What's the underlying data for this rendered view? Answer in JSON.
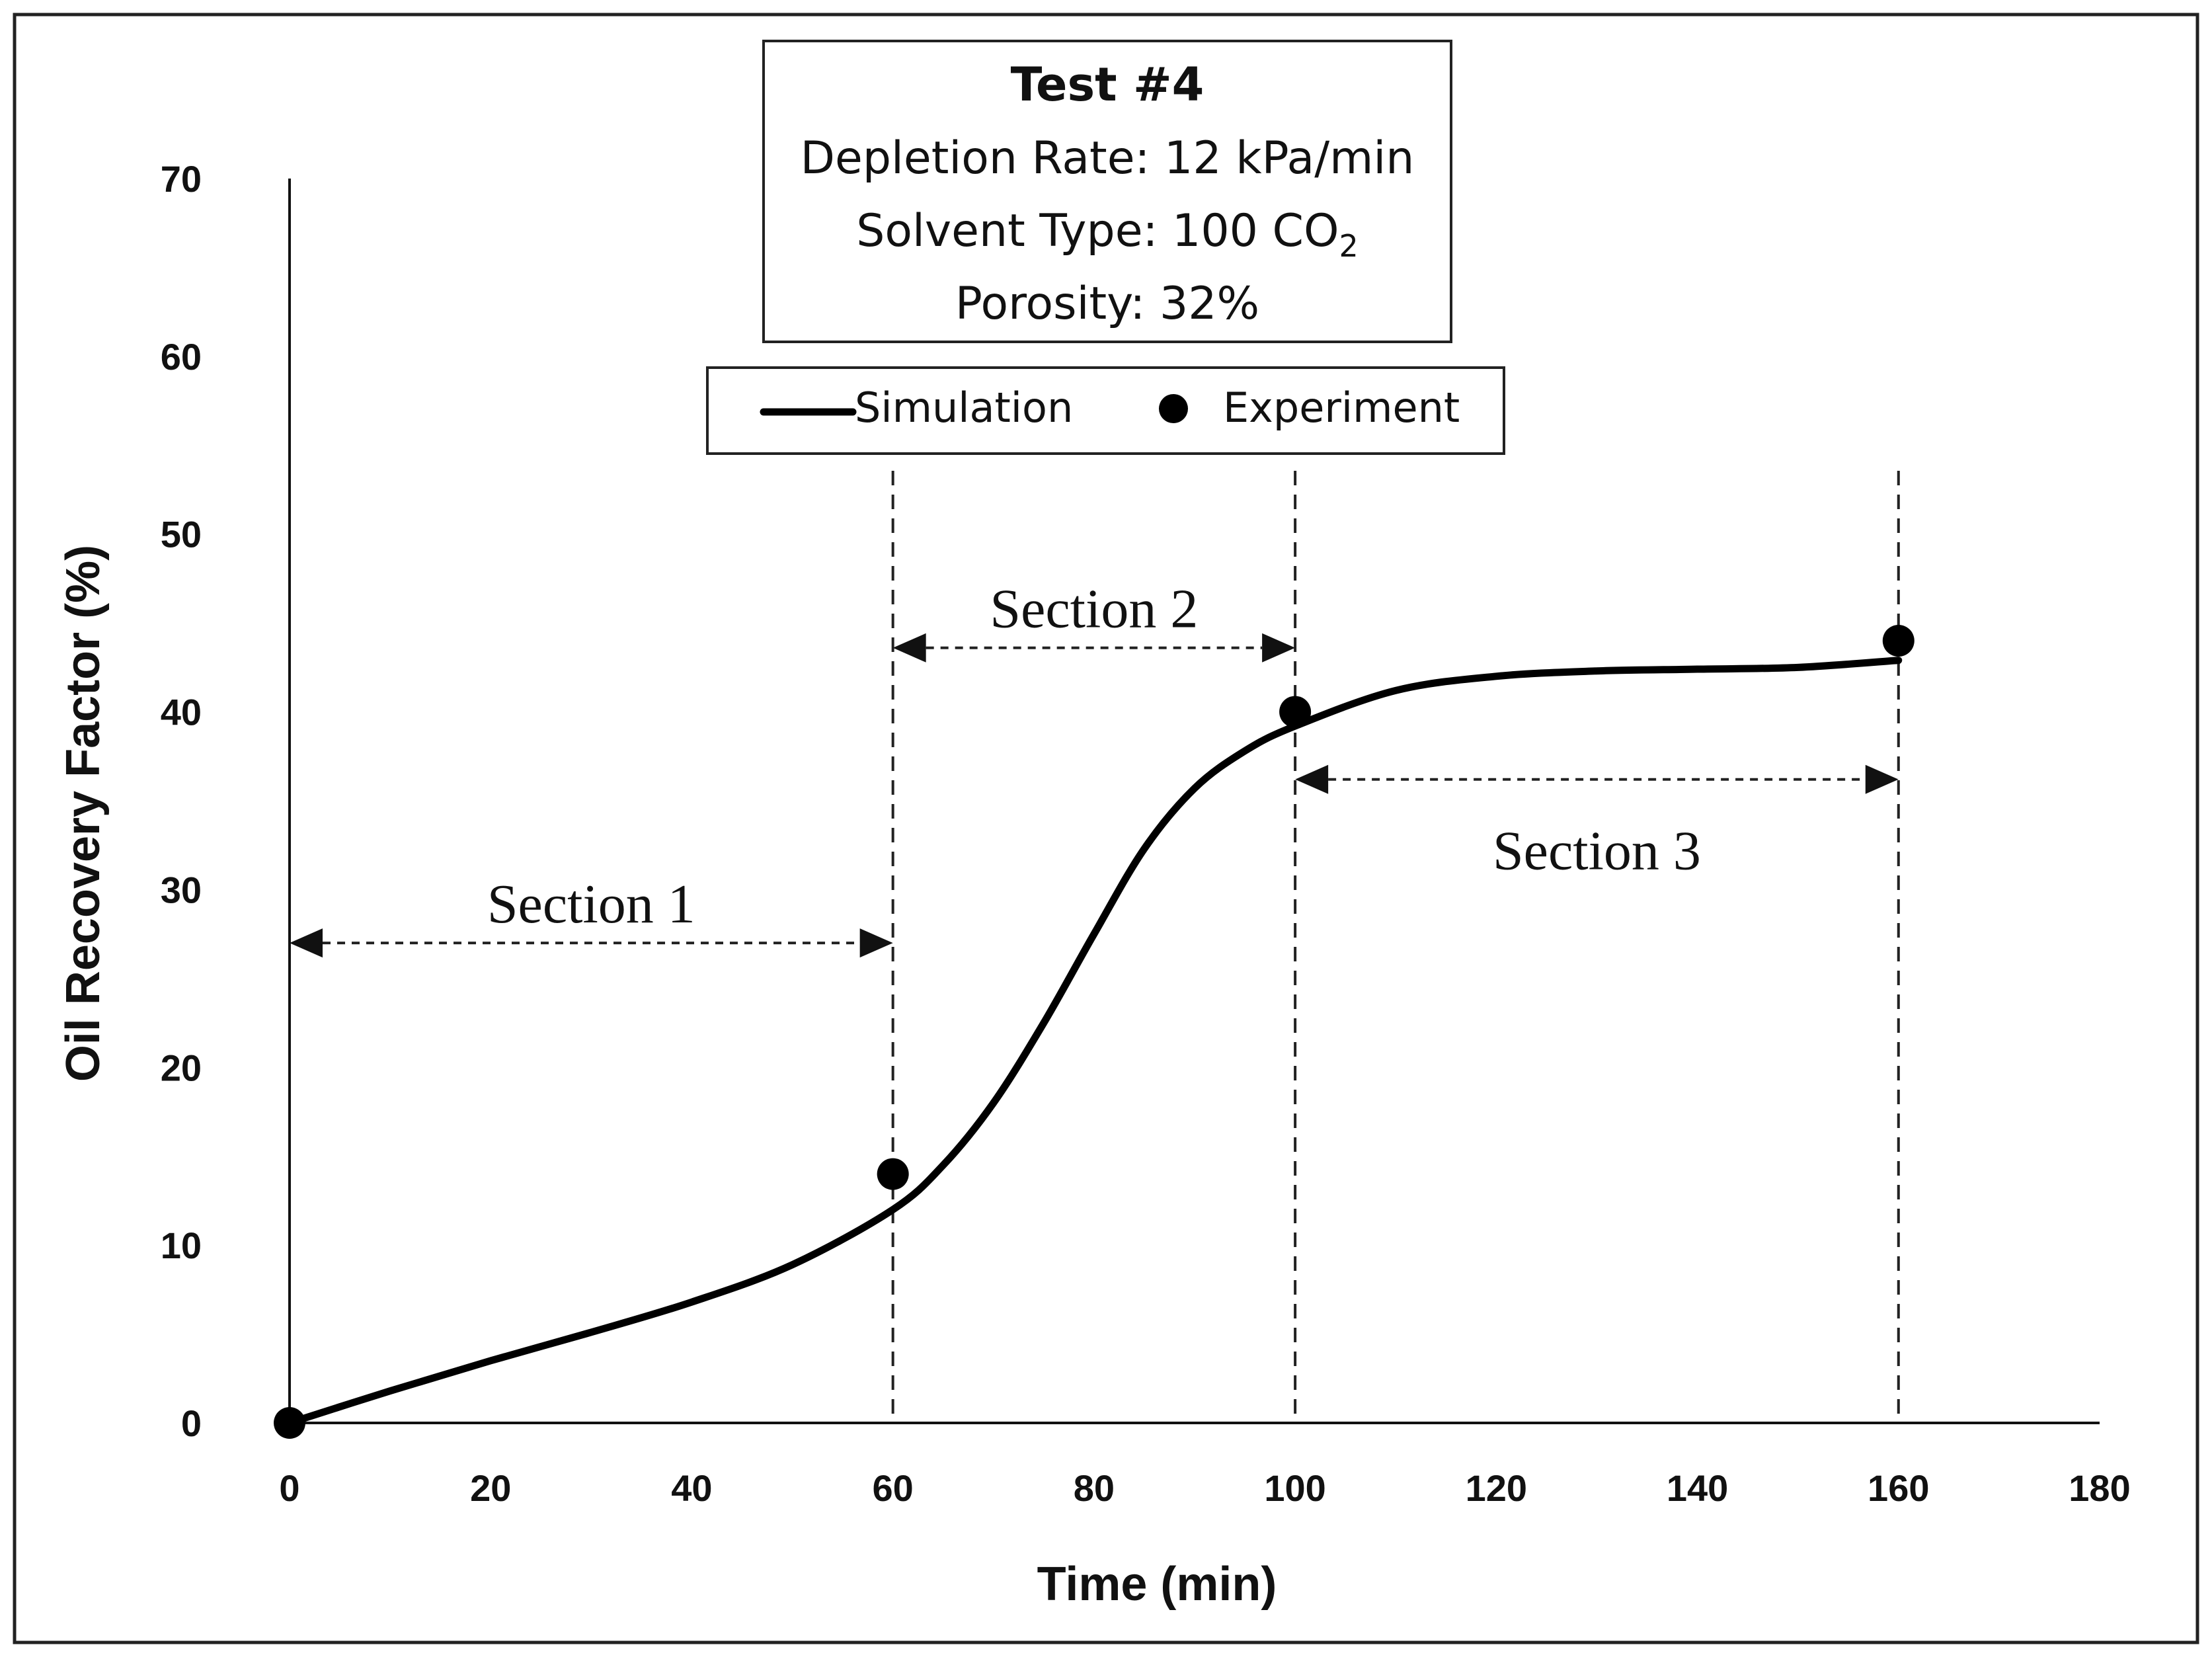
{
  "chart_data": {
    "type": "line",
    "xlabel": "Time (min)",
    "ylabel": "Oil Recovery Factor (%)",
    "xlim": [
      0,
      180
    ],
    "ylim": [
      0,
      70
    ],
    "x_ticks": [
      0,
      20,
      40,
      60,
      80,
      100,
      120,
      140,
      160,
      180
    ],
    "y_ticks": [
      0,
      10,
      20,
      30,
      40,
      50,
      60,
      70
    ],
    "info_box": {
      "title": "Test #4",
      "depletion_rate": "Depletion Rate: 12 kPa/min",
      "solvent_prefix": "Solvent Type: 100 CO",
      "solvent_subscript": "2",
      "porosity": "Porosity: 32%"
    },
    "legend": {
      "simulation": "Simulation",
      "experiment": "Experiment"
    },
    "series": [
      {
        "name": "Simulation",
        "style": "line",
        "x": [
          0,
          10,
          20,
          30,
          40,
          50,
          60,
          65,
          70,
          75,
          80,
          85,
          90,
          95,
          100,
          110,
          120,
          130,
          140,
          150,
          160
        ],
        "y": [
          0,
          1.8,
          3.5,
          5.1,
          6.8,
          8.9,
          12,
          14.5,
          18,
          22.5,
          27.5,
          32.3,
          35.7,
          37.8,
          39.2,
          41.2,
          42,
          42.3,
          42.4,
          42.5,
          42.9
        ]
      },
      {
        "name": "Experiment",
        "style": "marker",
        "x": [
          0,
          60,
          100,
          160
        ],
        "y": [
          0,
          14,
          40,
          44
        ]
      }
    ],
    "section_boundaries": [
      60,
      100,
      160
    ],
    "sections": [
      {
        "label": "Section 1",
        "from": 0,
        "to": 60,
        "arrow_y": 27,
        "label_y": 29.2
      },
      {
        "label": "Section 2",
        "from": 60,
        "to": 100,
        "arrow_y": 43.6,
        "label_y": 45.8
      },
      {
        "label": "Section 3",
        "from": 100,
        "to": 160,
        "arrow_y": 36.2,
        "label_y": 32.2
      }
    ]
  }
}
